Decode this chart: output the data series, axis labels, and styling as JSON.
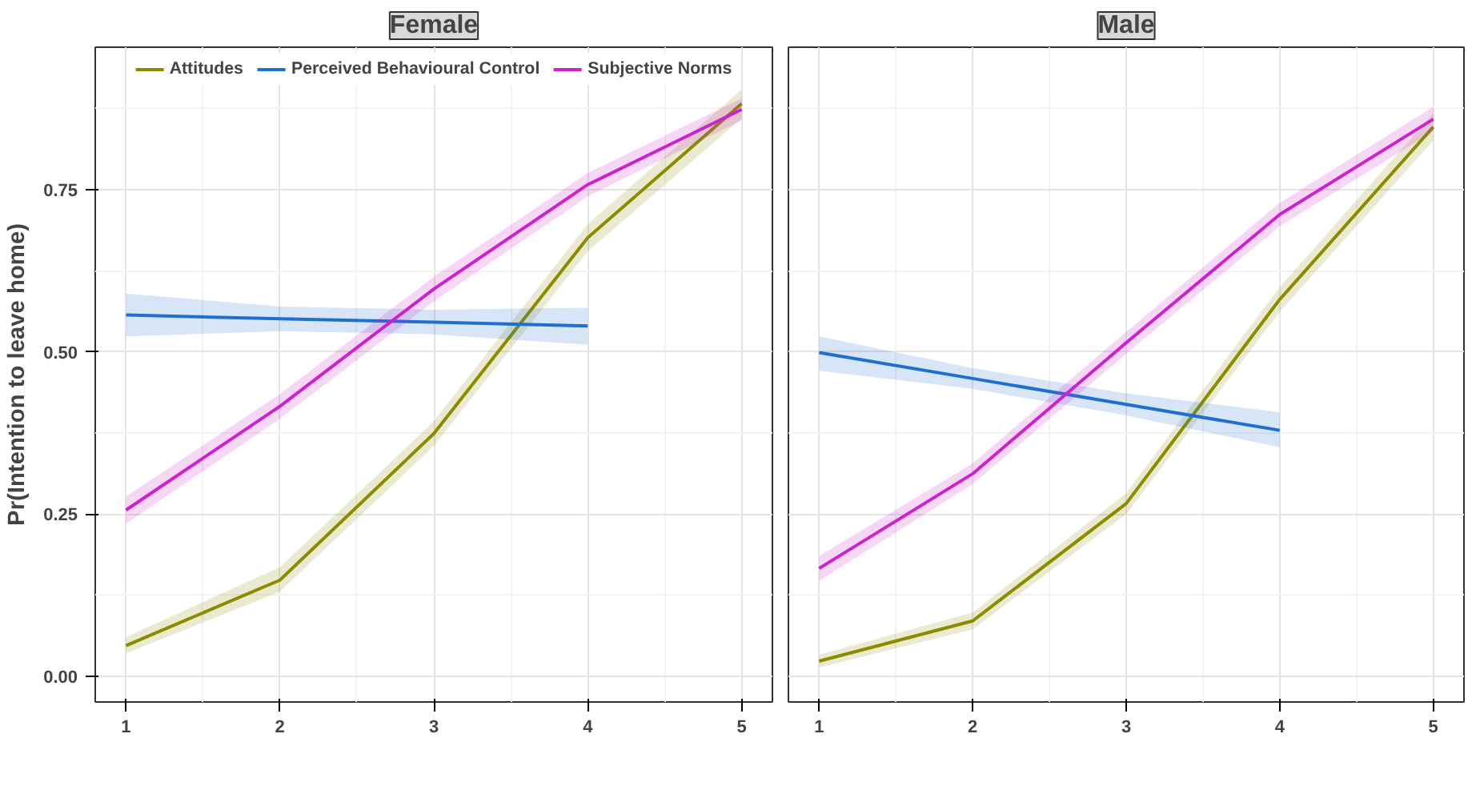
{
  "chart_data": [
    {
      "type": "line",
      "title": "Female",
      "ylabel": "Pr(Intention to leave home)",
      "x": [
        1,
        2,
        3,
        4,
        5
      ],
      "xlim": [
        0.8,
        5.2
      ],
      "ylim": [
        -0.04,
        0.97
      ],
      "xticks": [
        1,
        2,
        3,
        4,
        5
      ],
      "yticks": [
        {
          "value": 0,
          "label": "0.00"
        },
        {
          "value": 0.25,
          "label": "0.25"
        },
        {
          "value": 0.5,
          "label": "0.50"
        },
        {
          "value": 0.75,
          "label": "0.75"
        }
      ],
      "grid": true,
      "legend": "top",
      "line_style": "solid",
      "series": [
        {
          "name": "Attitudes",
          "color": "#8b8b00",
          "values": [
            0.047,
            0.148,
            0.374,
            0.676,
            0.883
          ],
          "lower": [
            0.035,
            0.13,
            0.355,
            0.655,
            0.86
          ],
          "upper": [
            0.06,
            0.168,
            0.393,
            0.697,
            0.905
          ]
        },
        {
          "name": "Perceived Behavioural Control",
          "color": "#1f6fd1",
          "x": [
            1,
            2,
            3,
            4
          ],
          "values": [
            0.557,
            0.551,
            0.546,
            0.54
          ],
          "lower": [
            0.524,
            0.532,
            0.527,
            0.511
          ],
          "upper": [
            0.59,
            0.57,
            0.565,
            0.568
          ]
        },
        {
          "name": "Subjective Norms",
          "color": "#cc22cc",
          "values": [
            0.256,
            0.416,
            0.597,
            0.758,
            0.874
          ],
          "lower": [
            0.235,
            0.397,
            0.578,
            0.74,
            0.857
          ],
          "upper": [
            0.277,
            0.435,
            0.616,
            0.776,
            0.891
          ]
        }
      ]
    },
    {
      "type": "line",
      "title": "Male",
      "x": [
        1,
        2,
        3,
        4,
        5
      ],
      "xlim": [
        0.8,
        5.2
      ],
      "ylim": [
        -0.04,
        0.97
      ],
      "xticks": [
        1,
        2,
        3,
        4,
        5
      ],
      "grid": true,
      "tick_labels": "x",
      "line_style": "solid",
      "series": [
        {
          "color": "#8b8b00",
          "values": [
            0.023,
            0.085,
            0.266,
            0.581,
            0.847
          ],
          "lower": [
            0.013,
            0.072,
            0.25,
            0.562,
            0.826
          ],
          "upper": [
            0.033,
            0.098,
            0.282,
            0.6,
            0.868
          ]
        },
        {
          "color": "#1f6fd1",
          "x": [
            1,
            2,
            3,
            4
          ],
          "values": [
            0.499,
            0.459,
            0.419,
            0.379
          ],
          "lower": [
            0.471,
            0.443,
            0.402,
            0.353
          ],
          "upper": [
            0.524,
            0.475,
            0.436,
            0.407
          ]
        },
        {
          "color": "#cc22cc",
          "values": [
            0.166,
            0.312,
            0.514,
            0.712,
            0.859
          ],
          "lower": [
            0.147,
            0.296,
            0.497,
            0.694,
            0.84
          ],
          "upper": [
            0.185,
            0.328,
            0.531,
            0.73,
            0.878
          ]
        }
      ]
    }
  ]
}
